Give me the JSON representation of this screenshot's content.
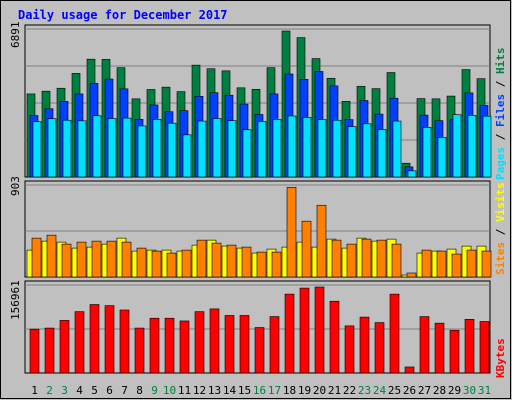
{
  "title": "Daily usage for December 2017",
  "colors": {
    "page_bg": "#c0c0c0",
    "title": "#0000ff",
    "hits": "#008040",
    "files": "#0040ff",
    "pages": "#00e0ff",
    "visits": "#ffff00",
    "sites": "#ff8000",
    "kbytes": "#ff0000",
    "weekend_label": "#008040",
    "weekday_label": "#000000",
    "grid": "#808080"
  },
  "chart_data": [
    {
      "type": "bar",
      "panel": "hits-files-pages",
      "y_max_label": "6891",
      "ylim": [
        0,
        6891
      ],
      "legend": [
        "Pages",
        "Files",
        "Hits"
      ],
      "legend_placement": "right",
      "categories": [
        "1",
        "2",
        "3",
        "4",
        "5",
        "6",
        "7",
        "8",
        "9",
        "10",
        "11",
        "12",
        "13",
        "14",
        "15",
        "16",
        "17",
        "18",
        "19",
        "20",
        "21",
        "22",
        "23",
        "24",
        "25",
        "26",
        "27",
        "28",
        "29",
        "30",
        "31"
      ],
      "weekend_days": [
        "2",
        "3",
        "9",
        "10",
        "16",
        "17",
        "23",
        "24",
        "30",
        "31"
      ],
      "series": [
        {
          "name": "Hits",
          "color_key": "hits",
          "values": [
            3920,
            4050,
            4190,
            4890,
            5560,
            5550,
            5160,
            3690,
            4130,
            4240,
            4030,
            5280,
            5110,
            5010,
            4210,
            4140,
            5160,
            6890,
            6580,
            5590,
            4660,
            3570,
            4280,
            4170,
            4930,
            650,
            3700,
            3690,
            3820,
            5070,
            4640
          ]
        },
        {
          "name": "Files",
          "color_key": "files",
          "values": [
            2900,
            3220,
            3570,
            3920,
            4420,
            4620,
            4160,
            2720,
            3400,
            3080,
            3130,
            3810,
            3980,
            3860,
            3440,
            2950,
            3920,
            4860,
            4610,
            4980,
            4300,
            2710,
            3610,
            2970,
            3720,
            480,
            2920,
            2660,
            2710,
            3970,
            3380
          ]
        },
        {
          "name": "Pages",
          "color_key": "pages",
          "values": [
            2610,
            2750,
            2680,
            2650,
            2890,
            2760,
            2780,
            2410,
            2720,
            2540,
            1990,
            2640,
            2760,
            2660,
            2230,
            2620,
            2720,
            2880,
            2810,
            2710,
            2680,
            2380,
            2510,
            2240,
            2640,
            290,
            2340,
            1870,
            2940,
            2910,
            2870
          ]
        }
      ]
    },
    {
      "type": "bar",
      "panel": "visits-sites",
      "y_max_label": "903",
      "ylim": [
        0,
        903
      ],
      "legend": [
        "Sites",
        "Visits"
      ],
      "legend_placement": "right",
      "categories": [
        "1",
        "2",
        "3",
        "4",
        "5",
        "6",
        "7",
        "8",
        "9",
        "10",
        "11",
        "12",
        "13",
        "14",
        "15",
        "16",
        "17",
        "18",
        "19",
        "20",
        "21",
        "22",
        "23",
        "24",
        "25",
        "26",
        "27",
        "28",
        "29",
        "30",
        "31"
      ],
      "series": [
        {
          "name": "Visits",
          "color_key": "visits",
          "values": [
            270,
            360,
            350,
            290,
            300,
            330,
            390,
            260,
            270,
            270,
            260,
            320,
            370,
            310,
            290,
            240,
            280,
            300,
            350,
            300,
            380,
            290,
            390,
            360,
            380,
            20,
            240,
            260,
            280,
            310,
            310
          ]
        },
        {
          "name": "Sites",
          "color_key": "sites",
          "values": [
            390,
            420,
            330,
            350,
            360,
            360,
            350,
            290,
            260,
            240,
            270,
            370,
            340,
            320,
            300,
            250,
            250,
            900,
            560,
            720,
            370,
            330,
            380,
            370,
            330,
            40,
            270,
            260,
            230,
            270,
            260
          ]
        }
      ]
    },
    {
      "type": "bar",
      "panel": "kbytes",
      "y_max_label": "156961",
      "ylim": [
        0,
        156961
      ],
      "legend": [
        "KBytes"
      ],
      "legend_placement": "right",
      "categories": [
        "1",
        "2",
        "3",
        "4",
        "5",
        "6",
        "7",
        "8",
        "9",
        "10",
        "11",
        "12",
        "13",
        "14",
        "15",
        "16",
        "17",
        "18",
        "19",
        "20",
        "21",
        "22",
        "23",
        "24",
        "25",
        "26",
        "27",
        "28",
        "29",
        "30",
        "31"
      ],
      "series": [
        {
          "name": "KBytes",
          "color_key": "kbytes",
          "values": [
            80000,
            82000,
            96000,
            112000,
            125000,
            123000,
            115000,
            82000,
            100000,
            100000,
            95000,
            112000,
            117000,
            105000,
            105000,
            83000,
            103000,
            144000,
            155000,
            161000,
            131000,
            86000,
            102000,
            92000,
            144000,
            11000,
            103000,
            91000,
            78000,
            98000,
            94000
          ]
        }
      ]
    }
  ]
}
